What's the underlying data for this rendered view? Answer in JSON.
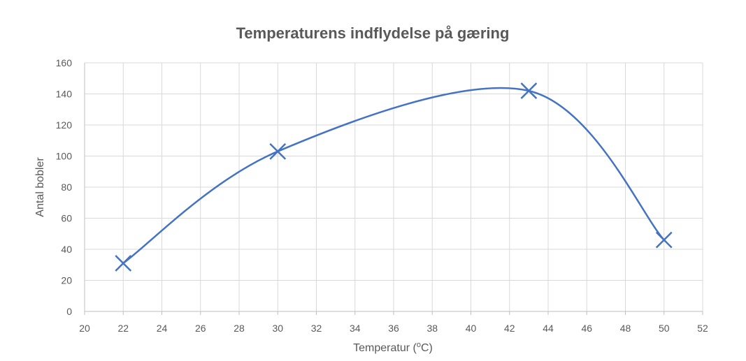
{
  "chart_data": {
    "type": "scatter",
    "title": "Temperaturens indflydelse på gæring",
    "xlabel": "Temperatur (",
    "xlabel_sup": "o",
    "xlabel_suffix": "C)",
    "ylabel": "Antal bobler",
    "xlim": [
      20,
      52
    ],
    "ylim": [
      0,
      160
    ],
    "xticks": [
      20,
      22,
      24,
      26,
      28,
      30,
      32,
      34,
      36,
      38,
      40,
      42,
      44,
      46,
      48,
      50,
      52
    ],
    "yticks": [
      0,
      20,
      40,
      60,
      80,
      100,
      120,
      140,
      160
    ],
    "grid": true,
    "legend": "none",
    "smooth_line": true,
    "marker": "x",
    "color": "#4472c4",
    "series": [
      {
        "x": [
          22,
          30,
          43,
          50
        ],
        "y": [
          31,
          103,
          142,
          46
        ]
      }
    ]
  }
}
